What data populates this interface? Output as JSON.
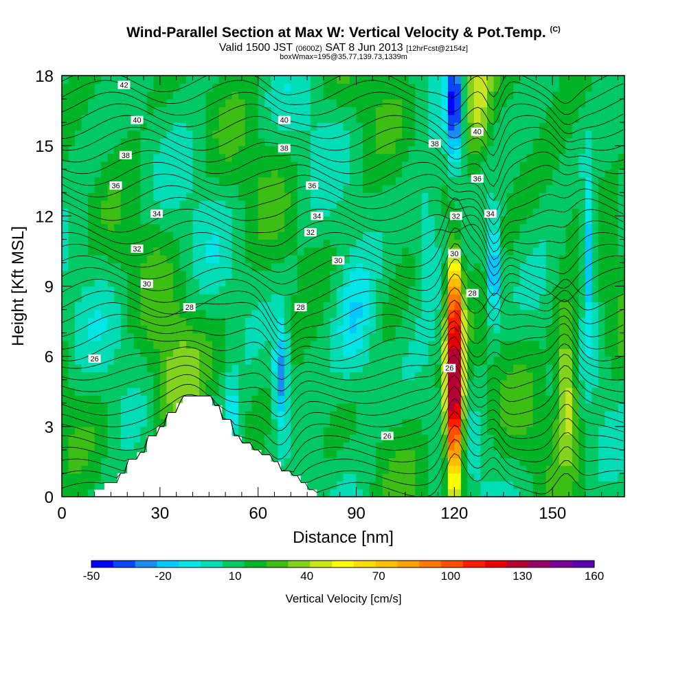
{
  "header": {
    "title": "Wind-Parallel Section at Max W: Vertical Velocity & Pot.Temp.",
    "title_tag": "(C)",
    "subtitle_a": "Valid 1500 JST",
    "subtitle_b": "(0600Z)",
    "subtitle_c": "SAT 8 Jun 2013",
    "subtitle_d": "[12hrFcst@2154z]",
    "subtitle_line2": "boxWmax=195@35.77,139.73,1339m"
  },
  "colors": {
    "w_scale": [
      "#0000ff",
      "#0a46f5",
      "#1b8cf0",
      "#00c8ff",
      "#00e6e6",
      "#00dcb4",
      "#00c864",
      "#00b428",
      "#3cbe14",
      "#82d21e",
      "#c8e61e",
      "#ffff00",
      "#ffdc00",
      "#ffbe00",
      "#ffa000",
      "#ff7800",
      "#ff5000",
      "#ff1e00",
      "#e60000",
      "#b40032",
      "#960064",
      "#780096",
      "#5a00b4"
    ],
    "terrain": "#ffffff",
    "contour": "#000000"
  },
  "chart_data": {
    "type": "heatmap",
    "title": "Wind-Parallel Section at Max W: Vertical Velocity & Pot.Temp. (C)",
    "xlabel": "Distance [nm]",
    "ylabel": "Height [Kft MSL]",
    "xlim": [
      0,
      172
    ],
    "ylim": [
      0,
      18
    ],
    "x_ticks": [
      "0",
      "30",
      "60",
      "90",
      "120",
      "150"
    ],
    "y_ticks": [
      "0",
      "3",
      "6",
      "9",
      "12",
      "15",
      "18"
    ],
    "colorbar": {
      "label": "Vertical Velocity [cm/s]",
      "tick_labels": [
        "-50",
        "-20",
        "10",
        "40",
        "70",
        "100",
        "130",
        "160"
      ],
      "tick_values": [
        -50,
        -20,
        10,
        40,
        70,
        100,
        130,
        160
      ]
    },
    "vertical_velocity_features": [
      {
        "kind": "updraft",
        "x": 120,
        "z_range": [
          0.7,
          10.5
        ],
        "max_cm_s": 150
      },
      {
        "kind": "updraft",
        "x": 154,
        "z_range": [
          1.5,
          8
        ],
        "max_cm_s": 50
      },
      {
        "kind": "updraft",
        "x": 127,
        "z_range": [
          15,
          18
        ],
        "max_cm_s": 40
      },
      {
        "kind": "downdraft",
        "x": 120,
        "z_range": [
          13.5,
          18
        ],
        "min_cm_s": -50
      },
      {
        "kind": "downdraft",
        "x": 132,
        "z_range": [
          7.5,
          11.5
        ],
        "min_cm_s": -40
      },
      {
        "kind": "downdraft",
        "x": 161,
        "z_range": [
          7.5,
          13.5
        ],
        "min_cm_s": -35
      },
      {
        "kind": "downdraft",
        "x": 67,
        "z_range": [
          3,
          7.5
        ],
        "min_cm_s": -40
      }
    ],
    "terrain": {
      "x": [
        0,
        10,
        10,
        13,
        13,
        17,
        17,
        20,
        20,
        23,
        23,
        26,
        26,
        29,
        29,
        32,
        32,
        35,
        35,
        37,
        37,
        46,
        46,
        49,
        49,
        52,
        52,
        55,
        55,
        58,
        58,
        61,
        61,
        64,
        64,
        67,
        67,
        70,
        70,
        73,
        73,
        75,
        75,
        78,
        78
      ],
      "z_kft": [
        0,
        0,
        0.3,
        0.3,
        0.6,
        0.6,
        1.0,
        1.0,
        1.6,
        1.6,
        1.9,
        1.9,
        2.6,
        2.6,
        3.0,
        3.0,
        3.6,
        3.6,
        4.0,
        4.0,
        4.3,
        4.3,
        3.9,
        3.9,
        3.3,
        3.3,
        2.6,
        2.6,
        2.3,
        2.3,
        2.0,
        2.0,
        1.8,
        1.8,
        1.5,
        1.5,
        1.1,
        1.1,
        0.9,
        0.9,
        0.6,
        0.6,
        0.3,
        0.3,
        0
      ]
    },
    "theta_labels": [
      {
        "text": "42",
        "x": 19,
        "z": 17.6
      },
      {
        "text": "40",
        "x": 23,
        "z": 16.1
      },
      {
        "text": "38",
        "x": 19.5,
        "z": 14.6
      },
      {
        "text": "36",
        "x": 16.5,
        "z": 13.3
      },
      {
        "text": "34",
        "x": 29,
        "z": 12.1
      },
      {
        "text": "32",
        "x": 23,
        "z": 10.6
      },
      {
        "text": "30",
        "x": 26,
        "z": 9.1
      },
      {
        "text": "28",
        "x": 39,
        "z": 8.1
      },
      {
        "text": "26",
        "x": 10,
        "z": 5.9
      },
      {
        "text": "40",
        "x": 68,
        "z": 16.1
      },
      {
        "text": "38",
        "x": 68,
        "z": 14.9
      },
      {
        "text": "36",
        "x": 76.5,
        "z": 13.3
      },
      {
        "text": "34",
        "x": 78,
        "z": 12.0
      },
      {
        "text": "32",
        "x": 76,
        "z": 11.3
      },
      {
        "text": "30",
        "x": 84.5,
        "z": 10.1
      },
      {
        "text": "28",
        "x": 73,
        "z": 8.1
      },
      {
        "text": "26",
        "x": 99.5,
        "z": 2.6
      },
      {
        "text": "38",
        "x": 114,
        "z": 15.1
      },
      {
        "text": "32",
        "x": 120.5,
        "z": 12.0
      },
      {
        "text": "30",
        "x": 120,
        "z": 10.4
      },
      {
        "text": "26",
        "x": 118.5,
        "z": 5.5
      },
      {
        "text": "40",
        "x": 127,
        "z": 15.6
      },
      {
        "text": "36",
        "x": 127,
        "z": 13.6
      },
      {
        "text": "34",
        "x": 131,
        "z": 12.1
      },
      {
        "text": "28",
        "x": 125.5,
        "z": 8.7
      }
    ]
  }
}
